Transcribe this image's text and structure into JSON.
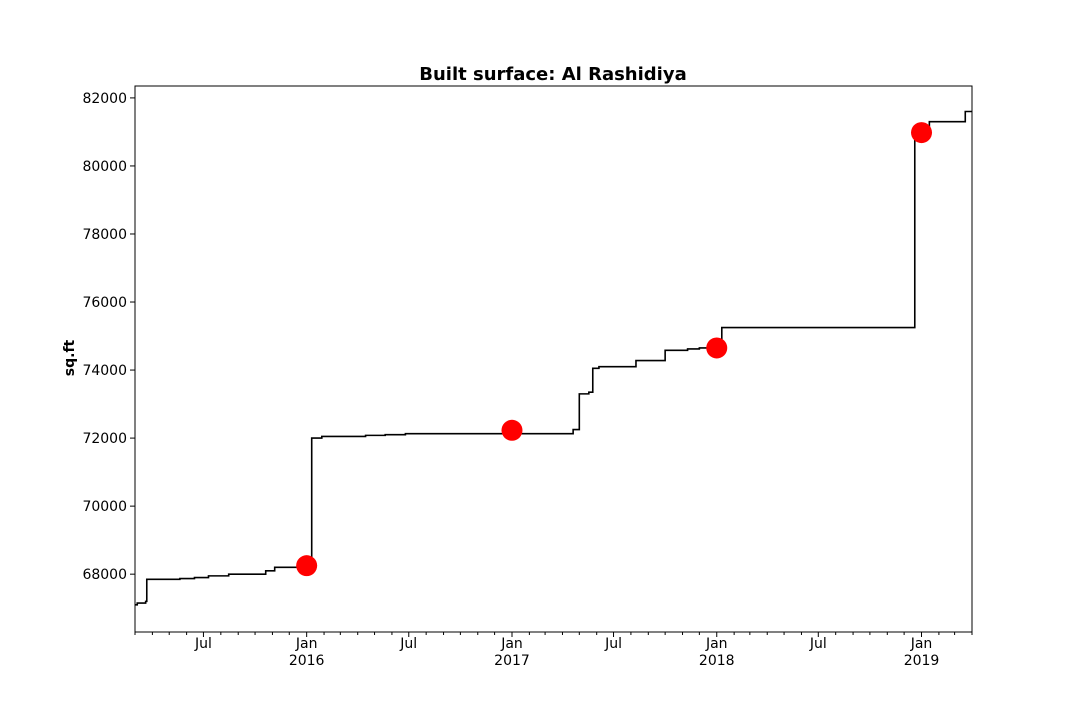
{
  "chart_data": {
    "type": "line",
    "title": "Built surface: Al Rashidiya",
    "xlabel": "",
    "ylabel": "sq.ft",
    "xlim": [
      "2015-03-01",
      "2019-04-01"
    ],
    "ylim": [
      66300,
      82350
    ],
    "y_ticks": [
      68000,
      70000,
      72000,
      74000,
      76000,
      78000,
      80000,
      82000
    ],
    "x_major_ticks": [
      {
        "date": "2015-07-01",
        "label": "Jul",
        "sublabel": ""
      },
      {
        "date": "2016-01-01",
        "label": "Jan",
        "sublabel": "2016"
      },
      {
        "date": "2016-07-01",
        "label": "Jul",
        "sublabel": ""
      },
      {
        "date": "2017-01-01",
        "label": "Jan",
        "sublabel": "2017"
      },
      {
        "date": "2017-07-01",
        "label": "Jul",
        "sublabel": ""
      },
      {
        "date": "2018-01-01",
        "label": "Jan",
        "sublabel": "2018"
      },
      {
        "date": "2018-07-01",
        "label": "Jul",
        "sublabel": ""
      },
      {
        "date": "2019-01-01",
        "label": "Jan",
        "sublabel": "2019"
      }
    ],
    "grid": false,
    "series": [
      {
        "style": "step",
        "color": "#000000",
        "points": [
          [
            "2015-03-01",
            67100
          ],
          [
            "2015-03-05",
            67150
          ],
          [
            "2015-03-20",
            67200
          ],
          [
            "2015-03-22",
            67850
          ],
          [
            "2015-05-20",
            67870
          ],
          [
            "2015-06-15",
            67900
          ],
          [
            "2015-07-10",
            67950
          ],
          [
            "2015-08-15",
            68000
          ],
          [
            "2015-10-20",
            68100
          ],
          [
            "2015-11-05",
            68200
          ],
          [
            "2016-01-10",
            72000
          ],
          [
            "2016-01-28",
            72050
          ],
          [
            "2016-04-15",
            72080
          ],
          [
            "2016-05-20",
            72100
          ],
          [
            "2016-06-25",
            72130
          ],
          [
            "2017-04-20",
            72250
          ],
          [
            "2017-05-01",
            73300
          ],
          [
            "2017-05-18",
            73350
          ],
          [
            "2017-05-25",
            74050
          ],
          [
            "2017-06-05",
            74100
          ],
          [
            "2017-08-10",
            74280
          ],
          [
            "2017-10-01",
            74580
          ],
          [
            "2017-11-10",
            74620
          ],
          [
            "2017-12-01",
            74650
          ],
          [
            "2018-01-10",
            75250
          ],
          [
            "2018-12-20",
            81000
          ],
          [
            "2019-01-15",
            81300
          ],
          [
            "2019-03-20",
            81600
          ],
          [
            "2019-04-01",
            81600
          ]
        ]
      },
      {
        "style": "markers",
        "color": "#ff0000",
        "points": [
          [
            "2016-01-01",
            68250
          ],
          [
            "2017-01-01",
            72230
          ],
          [
            "2018-01-01",
            74650
          ],
          [
            "2019-01-01",
            80980
          ]
        ]
      }
    ]
  }
}
